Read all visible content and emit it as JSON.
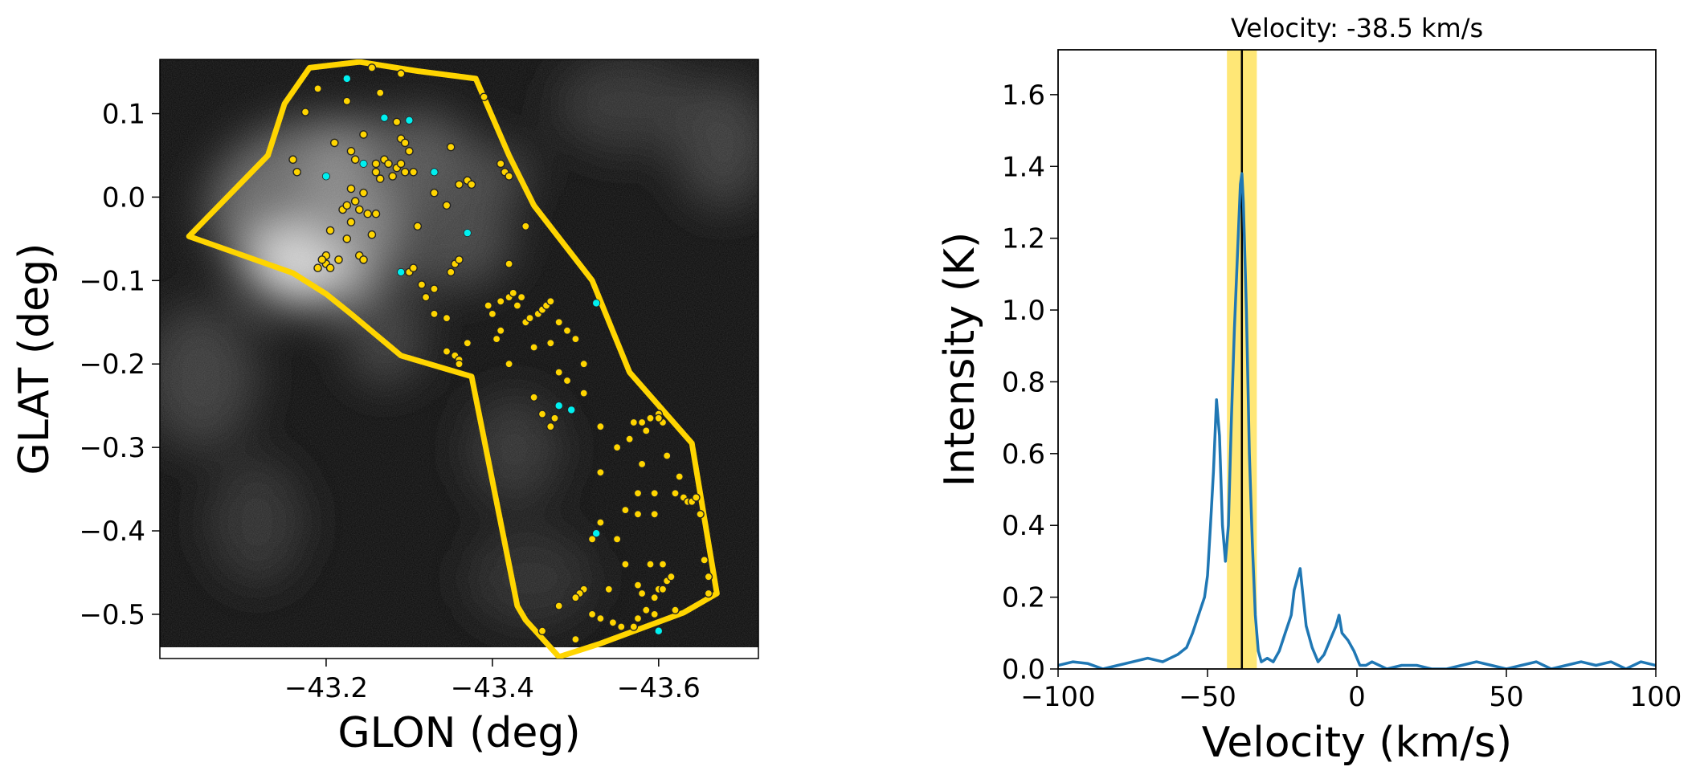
{
  "chart_data": [
    {
      "type": "scatter",
      "panel": "map",
      "xlabel": "GLON (deg)",
      "ylabel": "GLAT (deg)",
      "xlim": [
        -43.0,
        -43.72
      ],
      "ylim": [
        -0.553,
        0.165
      ],
      "x_ticks": [
        -43.2,
        -43.4,
        -43.6
      ],
      "x_tick_labels": [
        "−43.2",
        "−43.4",
        "−43.6"
      ],
      "y_ticks": [
        0.1,
        0.0,
        -0.1,
        -0.2,
        -0.3,
        -0.4,
        -0.5
      ],
      "y_tick_labels": [
        "0.1",
        "0.0",
        "−0.1",
        "−0.2",
        "−0.3",
        "−0.4",
        "−0.5"
      ],
      "polygon": [
        [
          -43.035,
          -0.047
        ],
        [
          -43.13,
          0.05
        ],
        [
          -43.15,
          0.112
        ],
        [
          -43.18,
          0.155
        ],
        [
          -43.24,
          0.162
        ],
        [
          -43.31,
          0.151
        ],
        [
          -43.38,
          0.142
        ],
        [
          -43.42,
          0.05
        ],
        [
          -43.45,
          -0.01
        ],
        [
          -43.52,
          -0.1
        ],
        [
          -43.565,
          -0.21
        ],
        [
          -43.64,
          -0.295
        ],
        [
          -43.67,
          -0.475
        ],
        [
          -43.63,
          -0.498
        ],
        [
          -43.53,
          -0.535
        ],
        [
          -43.48,
          -0.551
        ],
        [
          -43.44,
          -0.507
        ],
        [
          -43.43,
          -0.49
        ],
        [
          -43.375,
          -0.215
        ],
        [
          -43.29,
          -0.19
        ],
        [
          -43.23,
          -0.14
        ],
        [
          -43.2,
          -0.116
        ],
        [
          -43.16,
          -0.091
        ]
      ],
      "polygon_color": "#FFD500",
      "yellow_points": [
        [
          -43.19,
          0.13
        ],
        [
          -43.175,
          0.102
        ],
        [
          -43.225,
          0.115
        ],
        [
          -43.255,
          0.155
        ],
        [
          -43.29,
          0.148
        ],
        [
          -43.265,
          0.125
        ],
        [
          -43.245,
          0.075
        ],
        [
          -43.285,
          0.09
        ],
        [
          -43.29,
          0.07
        ],
        [
          -43.295,
          0.065
        ],
        [
          -43.3,
          0.055
        ],
        [
          -43.305,
          0.03
        ],
        [
          -43.27,
          0.045
        ],
        [
          -43.26,
          0.04
        ],
        [
          -43.275,
          0.04
        ],
        [
          -43.285,
          0.035
        ],
        [
          -43.29,
          0.04
        ],
        [
          -43.295,
          0.03
        ],
        [
          -43.28,
          0.025
        ],
        [
          -43.265,
          0.022
        ],
        [
          -43.23,
          0.01
        ],
        [
          -43.245,
          0.005
        ],
        [
          -43.235,
          -0.005
        ],
        [
          -43.22,
          -0.015
        ],
        [
          -43.225,
          -0.01
        ],
        [
          -43.24,
          -0.015
        ],
        [
          -43.25,
          -0.02
        ],
        [
          -43.26,
          -0.02
        ],
        [
          -43.23,
          -0.03
        ],
        [
          -43.255,
          -0.045
        ],
        [
          -43.21,
          0.065
        ],
        [
          -43.23,
          0.055
        ],
        [
          -43.235,
          0.045
        ],
        [
          -43.26,
          0.03
        ],
        [
          -43.33,
          0.005
        ],
        [
          -43.345,
          -0.01
        ],
        [
          -43.36,
          0.015
        ],
        [
          -43.37,
          0.02
        ],
        [
          -43.375,
          0.015
        ],
        [
          -43.41,
          0.04
        ],
        [
          -43.415,
          0.03
        ],
        [
          -43.42,
          0.025
        ],
        [
          -43.39,
          0.12
        ],
        [
          -43.35,
          0.06
        ],
        [
          -43.31,
          -0.035
        ],
        [
          -43.225,
          -0.05
        ],
        [
          -43.205,
          -0.04
        ],
        [
          -43.16,
          0.045
        ],
        [
          -43.165,
          0.03
        ],
        [
          -43.2,
          -0.07
        ],
        [
          -43.2,
          -0.08
        ],
        [
          -43.205,
          -0.085
        ],
        [
          -43.19,
          -0.085
        ],
        [
          -43.195,
          -0.075
        ],
        [
          -43.215,
          -0.075
        ],
        [
          -43.24,
          -0.07
        ],
        [
          -43.245,
          -0.075
        ],
        [
          -43.3,
          -0.09
        ],
        [
          -43.305,
          -0.085
        ],
        [
          -43.315,
          -0.105
        ],
        [
          -43.32,
          -0.12
        ],
        [
          -43.33,
          -0.11
        ],
        [
          -43.35,
          -0.09
        ],
        [
          -43.355,
          -0.08
        ],
        [
          -43.36,
          -0.075
        ],
        [
          -43.33,
          -0.14
        ],
        [
          -43.345,
          -0.145
        ],
        [
          -43.37,
          -0.175
        ],
        [
          -43.395,
          -0.13
        ],
        [
          -43.4,
          -0.14
        ],
        [
          -43.41,
          -0.125
        ],
        [
          -43.42,
          -0.12
        ],
        [
          -43.425,
          -0.115
        ],
        [
          -43.43,
          -0.13
        ],
        [
          -43.435,
          -0.12
        ],
        [
          -43.44,
          -0.15
        ],
        [
          -43.445,
          -0.145
        ],
        [
          -43.455,
          -0.14
        ],
        [
          -43.46,
          -0.135
        ],
        [
          -43.465,
          -0.13
        ],
        [
          -43.47,
          -0.125
        ],
        [
          -43.48,
          -0.15
        ],
        [
          -43.49,
          -0.16
        ],
        [
          -43.5,
          -0.17
        ],
        [
          -43.47,
          -0.175
        ],
        [
          -43.45,
          -0.18
        ],
        [
          -43.41,
          -0.16
        ],
        [
          -43.405,
          -0.17
        ],
        [
          -43.42,
          -0.2
        ],
        [
          -43.42,
          -0.08
        ],
        [
          -43.44,
          -0.035
        ],
        [
          -43.345,
          -0.185
        ],
        [
          -43.355,
          -0.19
        ],
        [
          -43.36,
          -0.195
        ],
        [
          -43.36,
          -0.2
        ],
        [
          -43.51,
          -0.2
        ],
        [
          -43.49,
          -0.22
        ],
        [
          -43.48,
          -0.21
        ],
        [
          -43.45,
          -0.24
        ],
        [
          -43.46,
          -0.26
        ],
        [
          -43.47,
          -0.275
        ],
        [
          -43.475,
          -0.265
        ],
        [
          -43.53,
          -0.275
        ],
        [
          -43.51,
          -0.235
        ],
        [
          -43.58,
          -0.27
        ],
        [
          -43.59,
          -0.265
        ],
        [
          -43.605,
          -0.27
        ],
        [
          -43.6,
          -0.26
        ],
        [
          -43.6,
          -0.265
        ],
        [
          -43.585,
          -0.28
        ],
        [
          -43.57,
          -0.27
        ],
        [
          -43.565,
          -0.29
        ],
        [
          -43.58,
          -0.32
        ],
        [
          -43.61,
          -0.31
        ],
        [
          -43.625,
          -0.335
        ],
        [
          -43.62,
          -0.355
        ],
        [
          -43.63,
          -0.36
        ],
        [
          -43.635,
          -0.365
        ],
        [
          -43.64,
          -0.365
        ],
        [
          -43.645,
          -0.36
        ],
        [
          -43.65,
          -0.38
        ],
        [
          -43.595,
          -0.355
        ],
        [
          -43.575,
          -0.355
        ],
        [
          -43.56,
          -0.375
        ],
        [
          -43.575,
          -0.38
        ],
        [
          -43.595,
          -0.38
        ],
        [
          -43.53,
          -0.39
        ],
        [
          -43.52,
          -0.41
        ],
        [
          -43.55,
          -0.41
        ],
        [
          -43.56,
          -0.44
        ],
        [
          -43.59,
          -0.44
        ],
        [
          -43.605,
          -0.44
        ],
        [
          -43.61,
          -0.46
        ],
        [
          -43.6,
          -0.47
        ],
        [
          -43.595,
          -0.48
        ],
        [
          -43.58,
          -0.475
        ],
        [
          -43.575,
          -0.465
        ],
        [
          -43.615,
          -0.455
        ],
        [
          -43.605,
          -0.47
        ],
        [
          -43.62,
          -0.495
        ],
        [
          -43.66,
          -0.455
        ],
        [
          -43.655,
          -0.435
        ],
        [
          -43.66,
          -0.475
        ],
        [
          -43.54,
          -0.47
        ],
        [
          -43.51,
          -0.47
        ],
        [
          -43.505,
          -0.475
        ],
        [
          -43.5,
          -0.48
        ],
        [
          -43.48,
          -0.49
        ],
        [
          -43.52,
          -0.5
        ],
        [
          -43.53,
          -0.505
        ],
        [
          -43.545,
          -0.51
        ],
        [
          -43.555,
          -0.515
        ],
        [
          -43.57,
          -0.515
        ],
        [
          -43.575,
          -0.505
        ],
        [
          -43.585,
          -0.495
        ],
        [
          -43.595,
          -0.5
        ],
        [
          -43.46,
          -0.52
        ],
        [
          -43.5,
          -0.53
        ],
        [
          -43.55,
          -0.3
        ],
        [
          -43.53,
          -0.33
        ]
      ],
      "cyan_points": [
        [
          -43.225,
          0.142
        ],
        [
          -43.27,
          0.095
        ],
        [
          -43.3,
          0.092
        ],
        [
          -43.2,
          0.025
        ],
        [
          -43.245,
          0.04
        ],
        [
          -43.33,
          0.03
        ],
        [
          -43.37,
          -0.043
        ],
        [
          -43.29,
          -0.09
        ],
        [
          -43.525,
          -0.127
        ],
        [
          -43.48,
          -0.25
        ],
        [
          -43.495,
          -0.255
        ],
        [
          -43.525,
          -0.403
        ],
        [
          -43.6,
          -0.52
        ]
      ],
      "yellow_color": "#FFD500",
      "cyan_color": "#00F0F0"
    },
    {
      "type": "line",
      "panel": "spectrum",
      "title": "Velocity: -38.5 km/s",
      "xlabel": "Velocity (km/s)",
      "ylabel": "Intensity (K)",
      "xlim": [
        -100,
        100
      ],
      "ylim": [
        0,
        1.725
      ],
      "x_ticks": [
        -100,
        -50,
        0,
        50,
        100
      ],
      "x_tick_labels": [
        "−100",
        "−50",
        "0",
        "50",
        "100"
      ],
      "y_ticks": [
        0.0,
        0.2,
        0.4,
        0.6,
        0.8,
        1.0,
        1.2,
        1.4,
        1.6
      ],
      "y_tick_labels": [
        "0.0",
        "0.2",
        "0.4",
        "0.6",
        "0.8",
        "1.0",
        "1.2",
        "1.4",
        "1.6"
      ],
      "marker_velocity": -38.5,
      "band": [
        -43.5,
        -33.5
      ],
      "line_color": "#1f77b4",
      "band_color": "#FFE35E",
      "series": [
        {
          "name": "spectrum",
          "x": [
            -100,
            -95,
            -90,
            -85,
            -80,
            -75,
            -70,
            -65,
            -60,
            -57,
            -55,
            -53,
            -51,
            -50,
            -49,
            -48,
            -47,
            -46,
            -45,
            -44,
            -43,
            -42,
            -41,
            -40,
            -39,
            -38.5,
            -38,
            -37,
            -36,
            -35,
            -34,
            -33,
            -32,
            -30,
            -28,
            -26,
            -24,
            -22,
            -21,
            -20,
            -19,
            -18,
            -17,
            -15,
            -13,
            -11,
            -9,
            -7,
            -6,
            -5,
            -3,
            -1,
            1,
            3,
            5,
            10,
            15,
            20,
            25,
            30,
            35,
            40,
            45,
            50,
            55,
            60,
            65,
            70,
            75,
            80,
            85,
            90,
            95,
            100
          ],
          "y": [
            0.01,
            0.02,
            0.015,
            0.0,
            0.01,
            0.02,
            0.03,
            0.02,
            0.04,
            0.06,
            0.1,
            0.15,
            0.2,
            0.26,
            0.4,
            0.55,
            0.75,
            0.65,
            0.4,
            0.3,
            0.4,
            0.7,
            0.95,
            1.15,
            1.35,
            1.38,
            1.3,
            1.0,
            0.6,
            0.35,
            0.15,
            0.05,
            0.02,
            0.03,
            0.02,
            0.05,
            0.1,
            0.15,
            0.22,
            0.25,
            0.28,
            0.2,
            0.12,
            0.06,
            0.02,
            0.04,
            0.08,
            0.12,
            0.15,
            0.1,
            0.08,
            0.05,
            0.01,
            0.01,
            0.02,
            0.0,
            0.01,
            0.01,
            0.0,
            0.0,
            0.01,
            0.02,
            0.01,
            0.0,
            0.01,
            0.02,
            0.0,
            0.01,
            0.02,
            0.01,
            0.02,
            0.0,
            0.02,
            0.01
          ]
        }
      ]
    }
  ]
}
